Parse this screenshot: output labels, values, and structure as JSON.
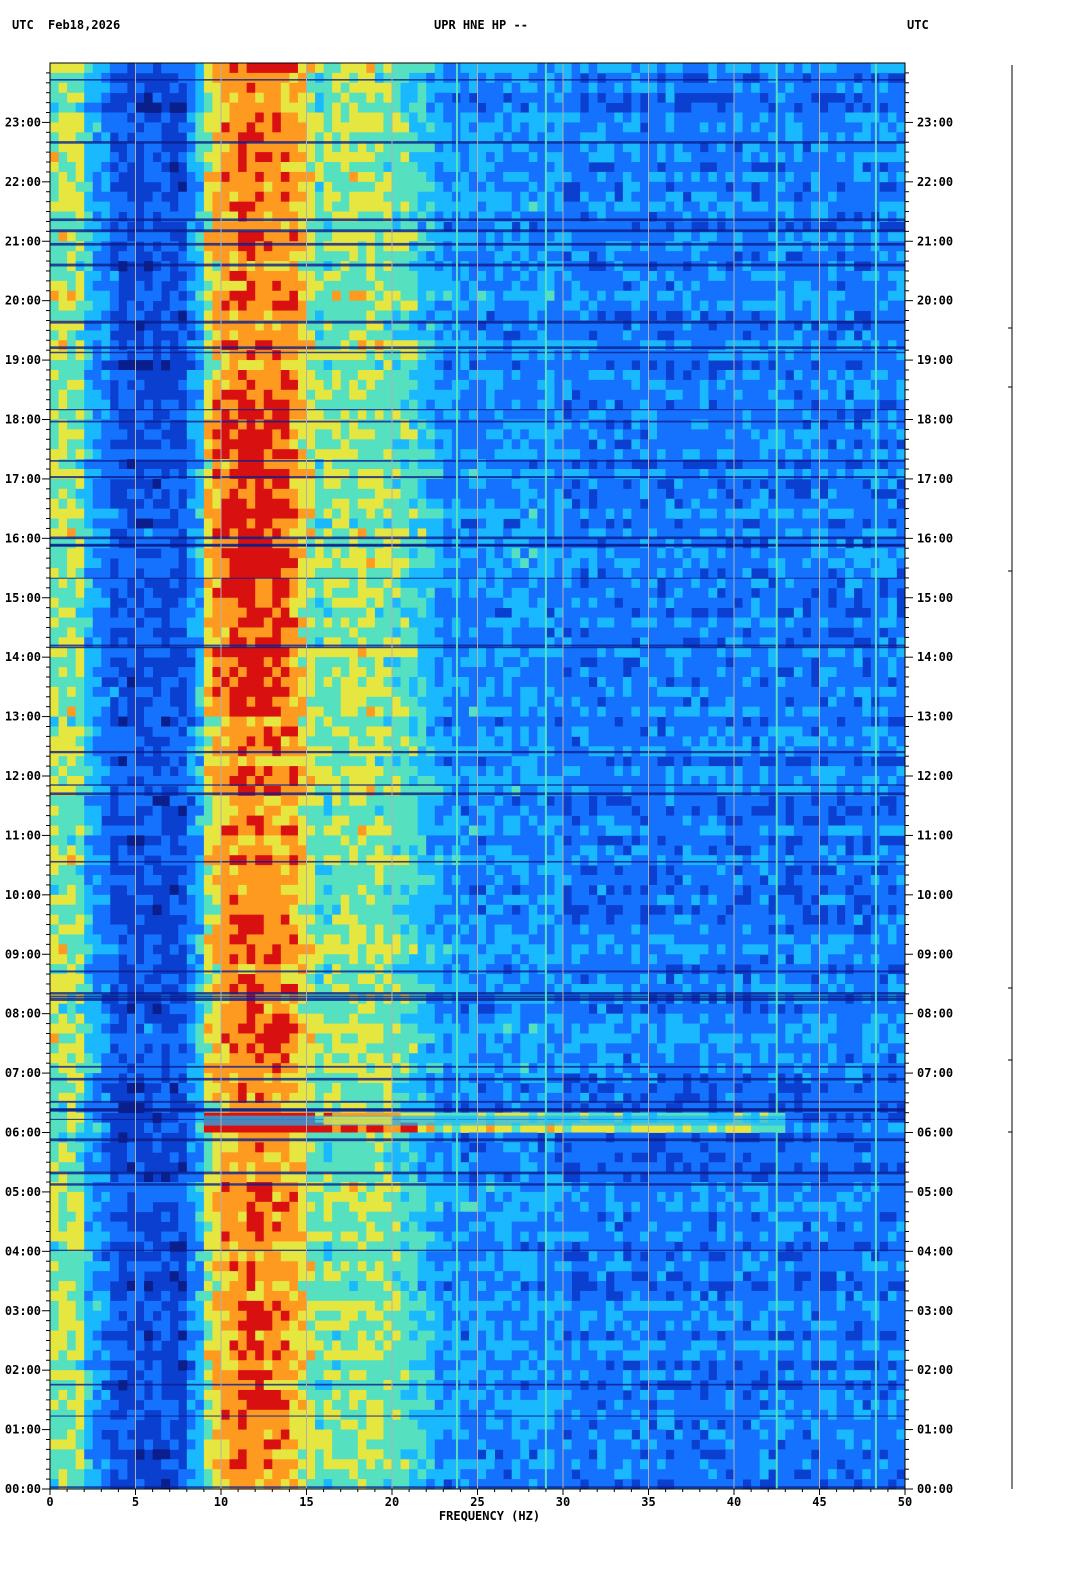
{
  "header": {
    "left_timezone": "UTC",
    "date": "Feb18,2026",
    "station": "UPR HNE HP --",
    "right_timezone": "UTC"
  },
  "chart_data": {
    "type": "heatmap",
    "title": "UPR HNE HP --",
    "xlabel": "FREQUENCY (HZ)",
    "ylabel": "",
    "xlim": [
      0,
      50
    ],
    "ylim_hours": [
      0,
      24
    ],
    "x_ticks": [
      0,
      5,
      10,
      15,
      20,
      25,
      30,
      35,
      40,
      45,
      50
    ],
    "x_tick_labels": [
      "0",
      "5",
      "10",
      "15",
      "20",
      "25",
      "30",
      "35",
      "40",
      "45",
      "50"
    ],
    "y_tick_labels": [
      "00:00",
      "01:00",
      "02:00",
      "03:00",
      "04:00",
      "05:00",
      "06:00",
      "07:00",
      "08:00",
      "09:00",
      "10:00",
      "11:00",
      "12:00",
      "13:00",
      "14:00",
      "15:00",
      "16:00",
      "17:00",
      "18:00",
      "19:00",
      "20:00",
      "21:00",
      "22:00",
      "23:00"
    ],
    "gridlines_hz": [
      5,
      10,
      15,
      20,
      25,
      30,
      35,
      40,
      45
    ],
    "colormap": [
      "#0a1e8c",
      "#0b3fd0",
      "#1572ff",
      "#19b8ff",
      "#55e0c0",
      "#e6e640",
      "#ff9a20",
      "#d81010"
    ],
    "energy_bands": [
      {
        "from_hz": 10.5,
        "to_hz": 13.0,
        "level": "high"
      },
      {
        "from_hz": 16.0,
        "to_hz": 20.0,
        "level": "medium"
      },
      {
        "from_hz": 0.0,
        "to_hz": 1.5,
        "level": "medium"
      }
    ],
    "persistent_lines_hz": [
      23.8,
      29.0,
      42.5,
      48.3
    ],
    "broadband_event_hour": 6.2
  }
}
